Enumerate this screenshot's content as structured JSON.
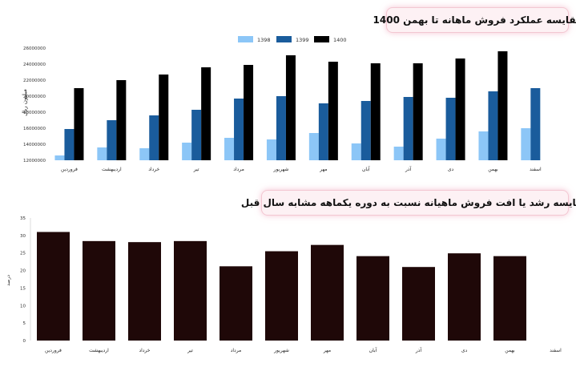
{
  "chart_data": [
    {
      "type": "bar",
      "title": "مقایسه عملکرد فروش ماهانه تا بهمن 1400",
      "ylabel": "میلیون ریال",
      "ylim": [
        12000000,
        26000000
      ],
      "yticks": [
        12000000,
        14000000,
        16000000,
        18000000,
        20000000,
        22000000,
        24000000,
        26000000
      ],
      "legend_position": "top",
      "categories": [
        "فروردین",
        "اردیبهشت",
        "خرداد",
        "تیر",
        "مرداد",
        "شهریور",
        "مهر",
        "آبان",
        "آذر",
        "دی",
        "بهمن",
        "اسفند"
      ],
      "series": [
        {
          "name": "1398",
          "color": "#8cc6f7",
          "values": [
            12600000,
            13600000,
            13500000,
            14200000,
            14800000,
            14600000,
            15400000,
            14100000,
            13700000,
            14700000,
            15600000,
            16000000
          ]
        },
        {
          "name": "1399",
          "color": "#1a5c9c",
          "values": [
            15900000,
            17000000,
            17600000,
            18300000,
            19700000,
            20000000,
            19100000,
            19400000,
            19900000,
            19800000,
            20600000,
            21000000
          ]
        },
        {
          "name": "1400",
          "color": "#000000",
          "values": [
            21000000,
            22000000,
            22700000,
            23600000,
            23900000,
            25100000,
            24300000,
            24100000,
            24100000,
            24700000,
            25600000,
            null
          ]
        }
      ]
    },
    {
      "type": "bar",
      "title": "مقایسه رشد یا افت فروش ماهیانه نسبت به دوره یکماهه مشابه سال قبل",
      "ylabel": "درصد",
      "ylim": [
        0,
        35
      ],
      "yticks": [
        0,
        5,
        10,
        15,
        20,
        25,
        30,
        35
      ],
      "categories": [
        "فروردین",
        "اردیبهشت",
        "خرداد",
        "تیر",
        "مرداد",
        "شهریور",
        "مهر",
        "آبان",
        "آذر",
        "دی",
        "بهمن",
        "اسفند"
      ],
      "series": [
        {
          "name": "",
          "color": "#1f0808",
          "values": [
            31,
            28.4,
            28.1,
            28.4,
            21.2,
            25.5,
            27.3,
            24.1,
            21,
            24.9,
            24.1,
            null
          ]
        }
      ]
    }
  ]
}
